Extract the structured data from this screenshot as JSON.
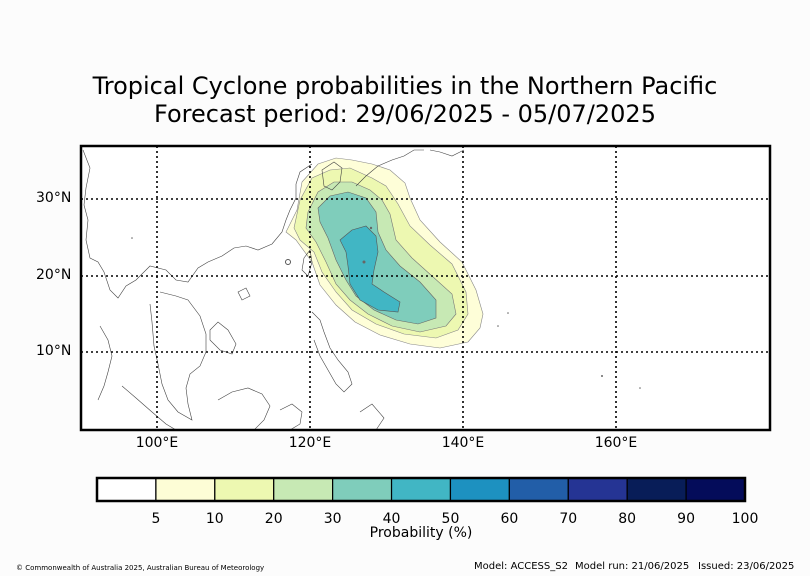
{
  "title_line1": "Tropical Cyclone probabilities in the Northern Pacific",
  "title_line2": "Forecast period: 29/06/2025 - 05/07/2025",
  "map": {
    "lon_range": [
      90,
      180
    ],
    "lat_range": [
      0,
      37
    ],
    "lat_labels": [
      "30°N",
      "20°N",
      "10°N"
    ],
    "lon_labels": [
      "100°E",
      "120°E",
      "140°E",
      "160°E"
    ],
    "gridlines": "dotted"
  },
  "colorbar": {
    "ticks": [
      "5",
      "10",
      "20",
      "30",
      "40",
      "50",
      "60",
      "70",
      "80",
      "90",
      "100"
    ],
    "colors": [
      "#ffffff",
      "#fdfdd6",
      "#edf8b1",
      "#c7e9b4",
      "#7fcdbb",
      "#41b6c4",
      "#1d91c0",
      "#225ea8",
      "#253494",
      "#081d58",
      "#040c5a"
    ],
    "label": "Probability (%)"
  },
  "footer": {
    "copyright": "© Commonwealth of Australia 2025, Australian Bureau of Meteorology",
    "model": "Model: ACCESS_S2",
    "model_run": "Model run: 21/06/2025",
    "issued": "Issued: 23/06/2025"
  }
}
